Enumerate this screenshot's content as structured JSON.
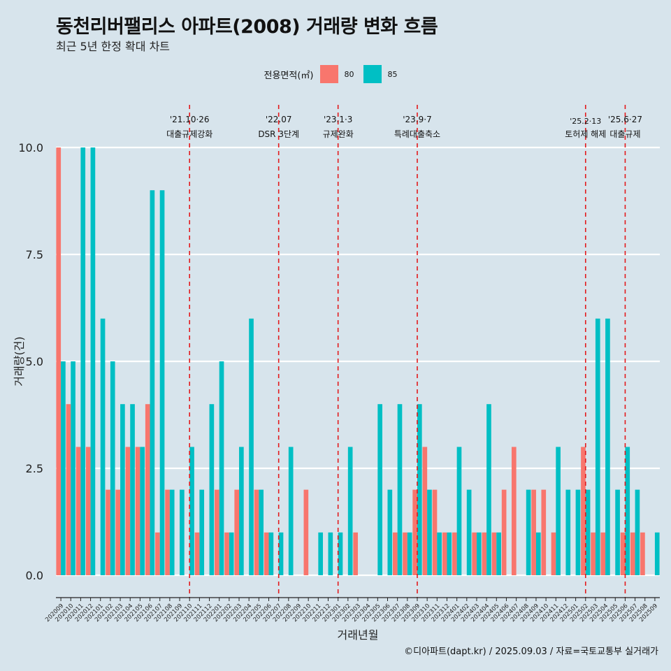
{
  "title": "동천리버팰리스 아파트(2008) 거래량 변화 흐름",
  "subtitle": "최근 5년 한정 확대 차트",
  "caption": "©디아파트(dapt.kr) / 2025.09.03 / 자료=국토교통부 실거래가",
  "legend": {
    "title": "전용면적(㎡)",
    "items": [
      {
        "label": "80",
        "color": "#f8766d"
      },
      {
        "label": "85",
        "color": "#00bfc4"
      }
    ]
  },
  "chart_data": {
    "type": "bar",
    "title": "동천리버팰리스 아파트(2008) 거래량 변화 흐름",
    "xlabel": "거래년월",
    "ylabel": "거래량(건)",
    "ylim": [
      0,
      10
    ],
    "yticks": [
      "0.0",
      "2.5",
      "5.0",
      "7.5",
      "10.0"
    ],
    "categories": [
      "202009",
      "202010",
      "202011",
      "202012",
      "202101",
      "202102",
      "202103",
      "202104",
      "202105",
      "202106",
      "202107",
      "202108",
      "202109",
      "202110",
      "202111",
      "202112",
      "202201",
      "202202",
      "202203",
      "202204",
      "202205",
      "202206",
      "202207",
      "202208",
      "202209",
      "202210",
      "202211",
      "202212",
      "202301",
      "202302",
      "202303",
      "202304",
      "202305",
      "202306",
      "202307",
      "202308",
      "202309",
      "202310",
      "202311",
      "202312",
      "202401",
      "202402",
      "202403",
      "202404",
      "202405",
      "202406",
      "202407",
      "202408",
      "202409",
      "202410",
      "202411",
      "202412",
      "202501",
      "202502",
      "202503",
      "202504",
      "202505",
      "202506",
      "202507",
      "202508",
      "202509"
    ],
    "series": [
      {
        "name": "80",
        "color": "#f8766d",
        "values": [
          10,
          4,
          3,
          3,
          0,
          2,
          2,
          3,
          3,
          4,
          1,
          2,
          0,
          0,
          1,
          0,
          2,
          1,
          2,
          0,
          2,
          1,
          0,
          0,
          0,
          2,
          0,
          0,
          0,
          0,
          1,
          0,
          0,
          0,
          1,
          1,
          2,
          3,
          2,
          1,
          1,
          0,
          1,
          1,
          1,
          2,
          3,
          0,
          2,
          2,
          1,
          0,
          0,
          3,
          1,
          1,
          0,
          1,
          1,
          1,
          0
        ]
      },
      {
        "name": "85",
        "color": "#00bfc4",
        "values": [
          5,
          5,
          10,
          10,
          6,
          5,
          4,
          4,
          3,
          9,
          9,
          2,
          2,
          3,
          2,
          4,
          5,
          1,
          3,
          6,
          2,
          1,
          1,
          3,
          0,
          0,
          1,
          1,
          1,
          3,
          0,
          0,
          4,
          2,
          4,
          1,
          4,
          2,
          1,
          1,
          3,
          2,
          1,
          4,
          1,
          0,
          0,
          2,
          1,
          0,
          3,
          2,
          2,
          2,
          6,
          6,
          2,
          3,
          2,
          0,
          1
        ]
      }
    ],
    "events": [
      {
        "date": "'21.10·26",
        "label": "대출규제강화",
        "category": "202110"
      },
      {
        "date": "'22.07",
        "label": "DSR 3단계",
        "category": "202207"
      },
      {
        "date": "'23.1·3",
        "label": "규제완화",
        "category": "202301"
      },
      {
        "date": "'23.9·7",
        "label": "특례대출축소",
        "category": "202309"
      },
      {
        "date": "'25.2·13",
        "label": "토허제 해제",
        "category": "202502"
      },
      {
        "date": "'25.6·27",
        "label": "대출규제",
        "category": "202506"
      }
    ]
  }
}
